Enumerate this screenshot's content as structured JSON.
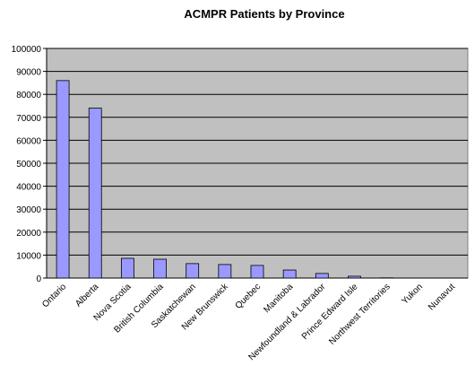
{
  "chart_data": {
    "type": "bar",
    "title": "ACMPR Patients by Province",
    "categories": [
      "Ontario",
      "Alberta",
      "Nova Scotia",
      "British Columbia",
      "Saskatchewan",
      "New Brunswick",
      "Quebec",
      "Manitoba",
      "Newfoundland & Labrador",
      "Prince Edward Isle",
      "Northwest Territories",
      "Yukon",
      "Nunavut"
    ],
    "values": [
      86000,
      74000,
      8600,
      8200,
      6300,
      5900,
      5500,
      3500,
      2000,
      800,
      100,
      0,
      0
    ],
    "color": "#9999ff",
    "ylim": [
      0,
      100000
    ],
    "yticks": [
      0,
      10000,
      20000,
      30000,
      40000,
      50000,
      60000,
      70000,
      80000,
      90000,
      100000
    ],
    "grid": true
  }
}
